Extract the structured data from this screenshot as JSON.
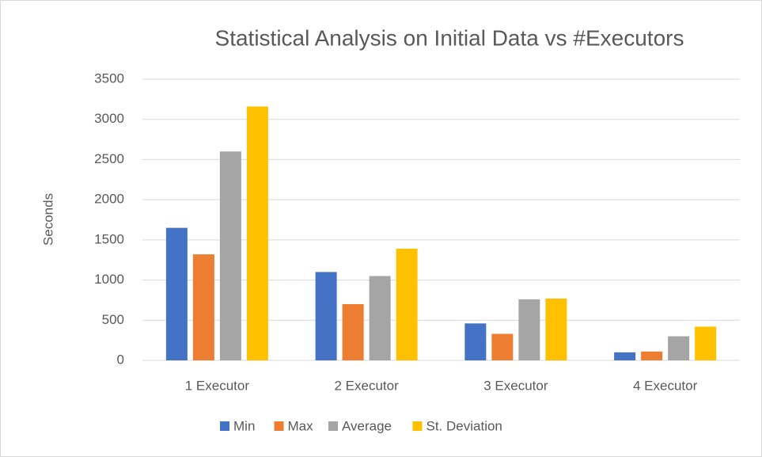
{
  "chart_data": {
    "type": "bar",
    "title": "Statistical Analysis on Initial Data vs #Executors",
    "y_label": "Seconds",
    "categories": [
      "1 Executor",
      "2 Executor",
      "3 Executor",
      "4 Executor"
    ],
    "series": [
      {
        "name": "Min",
        "color": "#4472c4",
        "values": [
          1650,
          1100,
          460,
          100
        ]
      },
      {
        "name": "Max",
        "color": "#ed7d31",
        "values": [
          1320,
          700,
          330,
          110
        ]
      },
      {
        "name": "Average",
        "color": "#a5a5a5",
        "values": [
          2600,
          1050,
          760,
          300
        ]
      },
      {
        "name": "St. Deviation",
        "color": "#ffc000",
        "values": [
          3160,
          1390,
          770,
          420
        ]
      }
    ],
    "ylim": [
      0,
      3500
    ],
    "yticks": [
      0,
      500,
      1000,
      1500,
      2000,
      2500,
      3000,
      3500
    ],
    "grid": true,
    "legend": "bottom"
  }
}
